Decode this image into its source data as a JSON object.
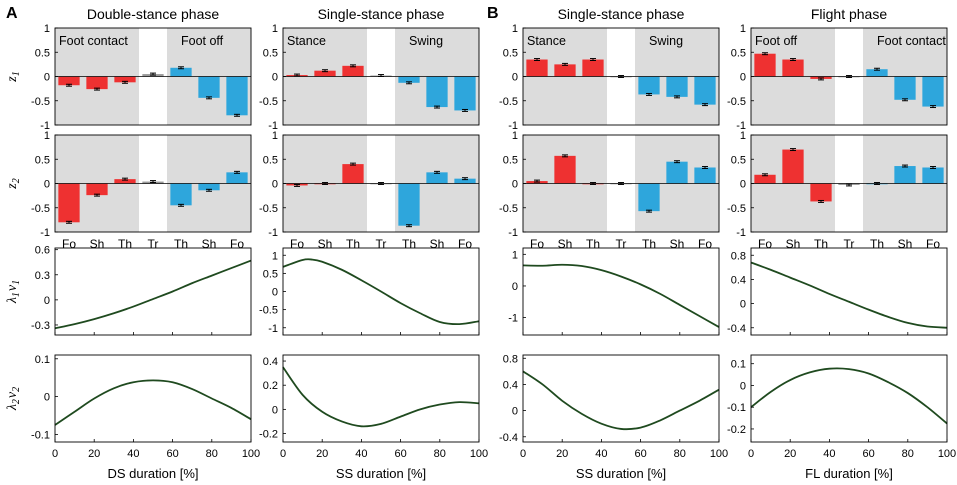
{
  "panel_letters": {
    "A": "A",
    "B": "B"
  },
  "column_titles": [
    "Double-stance phase",
    "Single-stance phase",
    "Single-stance phase",
    "Flight phase"
  ],
  "y_labels": {
    "z1": {
      "main": "z",
      "sub": "1"
    },
    "z2": {
      "main": "z",
      "sub": "2"
    },
    "lv1": {
      "main": "λ",
      "sub1": "1",
      "main2": "ν",
      "sub2": "1"
    },
    "lv2": {
      "main": "λ",
      "sub1": "2",
      "main2": "ν",
      "sub2": "2"
    }
  },
  "x_labels": [
    "DS duration [%]",
    "SS duration [%]",
    "SS duration [%]",
    "FL duration [%]"
  ],
  "colors": {
    "red": "#ee3131",
    "blue": "#2ea6dc",
    "gray": "#9a9a9a",
    "shade": "#dcdcdc",
    "line": "#1f4a1f"
  },
  "chart_data": [
    {
      "type": "bar",
      "row": "z1",
      "column": 0,
      "categories": [
        "Fo",
        "Sh",
        "Th",
        "Tr",
        "Th",
        "Sh",
        "Fo"
      ],
      "values": [
        -0.18,
        -0.26,
        -0.12,
        0.05,
        0.18,
        -0.44,
        -0.8
      ],
      "errors": [
        0.02,
        0.02,
        0.02,
        0.02,
        0.02,
        0.02,
        0.02
      ],
      "groups": [
        "left",
        "left",
        "left",
        "mid",
        "right",
        "right",
        "right"
      ],
      "region_labels": [
        "Foot contact",
        "Foot off"
      ],
      "yticks": [
        1,
        0.5,
        0,
        -0.5,
        -1
      ],
      "ylim": [
        -1,
        1
      ]
    },
    {
      "type": "bar",
      "row": "z1",
      "column": 1,
      "categories": [
        "Fo",
        "Sh",
        "Th",
        "Tr",
        "Th",
        "Sh",
        "Fo"
      ],
      "values": [
        0.03,
        0.12,
        0.22,
        0.02,
        -0.13,
        -0.63,
        -0.7
      ],
      "errors": [
        0.02,
        0.02,
        0.02,
        0.02,
        0.02,
        0.02,
        0.02
      ],
      "groups": [
        "left",
        "left",
        "left",
        "mid",
        "right",
        "right",
        "right"
      ],
      "region_labels": [
        "Stance",
        "Swing"
      ],
      "yticks": [
        1,
        0.5,
        0,
        -0.5,
        -1
      ],
      "ylim": [
        -1,
        1
      ]
    },
    {
      "type": "bar",
      "row": "z1",
      "column": 2,
      "categories": [
        "Fo",
        "Sh",
        "Th",
        "Tr",
        "Th",
        "Sh",
        "Fo"
      ],
      "values": [
        0.35,
        0.25,
        0.35,
        0.0,
        -0.37,
        -0.42,
        -0.58
      ],
      "errors": [
        0.02,
        0.02,
        0.02,
        0.02,
        0.02,
        0.02,
        0.02
      ],
      "groups": [
        "left",
        "left",
        "left",
        "mid",
        "right",
        "right",
        "right"
      ],
      "region_labels": [
        "Stance",
        "Swing"
      ],
      "yticks": [
        1,
        0.5,
        0,
        -0.5,
        -1
      ],
      "ylim": [
        -1,
        1
      ]
    },
    {
      "type": "bar",
      "row": "z1",
      "column": 3,
      "categories": [
        "Fo",
        "Sh",
        "Th",
        "Tr",
        "Th",
        "Sh",
        "Fo"
      ],
      "values": [
        0.47,
        0.35,
        -0.05,
        0.0,
        0.15,
        -0.48,
        -0.62
      ],
      "errors": [
        0.02,
        0.02,
        0.02,
        0.02,
        0.02,
        0.02,
        0.02
      ],
      "groups": [
        "left",
        "left",
        "left",
        "mid",
        "right",
        "right",
        "right"
      ],
      "region_labels": [
        "Foot off",
        "Foot contact"
      ],
      "yticks": [
        1,
        0.5,
        0,
        -0.5,
        -1
      ],
      "ylim": [
        -1,
        1
      ]
    },
    {
      "type": "bar",
      "row": "z2",
      "column": 0,
      "categories": [
        "Fo",
        "Sh",
        "Th",
        "Tr",
        "Th",
        "Sh",
        "Fo"
      ],
      "values": [
        -0.8,
        -0.24,
        0.09,
        0.04,
        -0.45,
        -0.14,
        0.23
      ],
      "errors": [
        0.02,
        0.02,
        0.02,
        0.02,
        0.02,
        0.02,
        0.02
      ],
      "groups": [
        "left",
        "left",
        "left",
        "mid",
        "right",
        "right",
        "right"
      ],
      "yticks": [
        1,
        0.5,
        0,
        -0.5,
        -1
      ],
      "ylim": [
        -1,
        1
      ]
    },
    {
      "type": "bar",
      "row": "z2",
      "column": 1,
      "categories": [
        "Fo",
        "Sh",
        "Th",
        "Tr",
        "Th",
        "Sh",
        "Fo"
      ],
      "values": [
        -0.04,
        0.0,
        0.4,
        0.0,
        -0.87,
        0.23,
        0.1
      ],
      "errors": [
        0.02,
        0.02,
        0.02,
        0.02,
        0.02,
        0.02,
        0.02
      ],
      "groups": [
        "left",
        "left",
        "left",
        "mid",
        "right",
        "right",
        "right"
      ],
      "yticks": [
        1,
        0.5,
        0,
        -0.5,
        -1
      ],
      "ylim": [
        -1,
        1
      ]
    },
    {
      "type": "bar",
      "row": "z2",
      "column": 2,
      "categories": [
        "Fo",
        "Sh",
        "Th",
        "Tr",
        "Th",
        "Sh",
        "Fo"
      ],
      "values": [
        0.05,
        0.57,
        0.0,
        0.0,
        -0.57,
        0.45,
        0.33
      ],
      "errors": [
        0.02,
        0.02,
        0.02,
        0.02,
        0.02,
        0.02,
        0.02
      ],
      "groups": [
        "left",
        "left",
        "left",
        "mid",
        "right",
        "right",
        "right"
      ],
      "yticks": [
        1,
        0.5,
        0,
        -0.5,
        -1
      ],
      "ylim": [
        -1,
        1
      ]
    },
    {
      "type": "bar",
      "row": "z2",
      "column": 3,
      "categories": [
        "Fo",
        "Sh",
        "Th",
        "Tr",
        "Th",
        "Sh",
        "Fo"
      ],
      "values": [
        0.18,
        0.7,
        -0.37,
        -0.03,
        0.0,
        0.36,
        0.33
      ],
      "errors": [
        0.02,
        0.02,
        0.02,
        0.02,
        0.02,
        0.02,
        0.02
      ],
      "groups": [
        "left",
        "left",
        "left",
        "mid",
        "right",
        "right",
        "right"
      ],
      "yticks": [
        1,
        0.5,
        0,
        -0.5,
        -1
      ],
      "ylim": [
        -1,
        1
      ]
    },
    {
      "type": "line",
      "row": "lv1",
      "column": 0,
      "x": [
        0,
        10,
        20,
        30,
        40,
        50,
        60,
        70,
        80,
        90,
        100
      ],
      "y": [
        -0.34,
        -0.29,
        -0.23,
        -0.16,
        -0.08,
        0.01,
        0.1,
        0.2,
        0.29,
        0.38,
        0.47
      ],
      "xlim": [
        0,
        100
      ],
      "ylim": [
        -0.42,
        0.62
      ],
      "yticks": [
        0.6,
        0.3,
        0,
        -0.3
      ]
    },
    {
      "type": "line",
      "row": "lv1",
      "column": 1,
      "x": [
        0,
        10,
        15,
        20,
        30,
        40,
        50,
        60,
        70,
        80,
        90,
        100
      ],
      "y": [
        0.68,
        0.87,
        0.88,
        0.82,
        0.6,
        0.31,
        0.0,
        -0.32,
        -0.6,
        -0.84,
        -0.9,
        -0.82
      ],
      "xlim": [
        0,
        100
      ],
      "ylim": [
        -1.2,
        1.2
      ],
      "yticks": [
        1,
        0.5,
        0,
        -0.5,
        -1
      ]
    },
    {
      "type": "line",
      "row": "lv1",
      "column": 2,
      "x": [
        0,
        10,
        20,
        30,
        40,
        50,
        60,
        70,
        80,
        90,
        100
      ],
      "y": [
        0.65,
        0.64,
        0.67,
        0.63,
        0.5,
        0.3,
        0.05,
        -0.25,
        -0.6,
        -0.95,
        -1.3
      ],
      "xlim": [
        0,
        100
      ],
      "ylim": [
        -1.55,
        1.2
      ],
      "yticks": [
        1,
        0,
        -1
      ]
    },
    {
      "type": "line",
      "row": "lv1",
      "column": 3,
      "x": [
        0,
        10,
        20,
        30,
        40,
        50,
        60,
        70,
        80,
        90,
        100
      ],
      "y": [
        0.68,
        0.56,
        0.43,
        0.3,
        0.16,
        0.03,
        -0.1,
        -0.22,
        -0.32,
        -0.38,
        -0.4
      ],
      "xlim": [
        0,
        100
      ],
      "ylim": [
        -0.52,
        0.92
      ],
      "yticks": [
        0.8,
        0.4,
        0,
        -0.4
      ]
    },
    {
      "type": "line",
      "row": "lv2",
      "column": 0,
      "x": [
        0,
        10,
        20,
        30,
        40,
        50,
        60,
        70,
        80,
        90,
        100
      ],
      "y": [
        -0.075,
        -0.04,
        -0.005,
        0.022,
        0.038,
        0.043,
        0.038,
        0.02,
        -0.005,
        -0.03,
        -0.06
      ],
      "xlim": [
        0,
        100
      ],
      "ylim": [
        -0.12,
        0.11
      ],
      "yticks": [
        0.1,
        0,
        -0.1
      ]
    },
    {
      "type": "line",
      "row": "lv2",
      "column": 1,
      "x": [
        0,
        10,
        20,
        30,
        40,
        50,
        60,
        70,
        80,
        90,
        100
      ],
      "y": [
        0.35,
        0.12,
        -0.02,
        -0.1,
        -0.14,
        -0.12,
        -0.06,
        0.0,
        0.04,
        0.06,
        0.05
      ],
      "xlim": [
        0,
        100
      ],
      "ylim": [
        -0.27,
        0.45
      ],
      "yticks": [
        0.4,
        0.2,
        0,
        -0.2
      ]
    },
    {
      "type": "line",
      "row": "lv2",
      "column": 2,
      "x": [
        0,
        10,
        20,
        30,
        40,
        50,
        60,
        70,
        80,
        90,
        100
      ],
      "y": [
        0.6,
        0.4,
        0.15,
        -0.05,
        -0.2,
        -0.28,
        -0.26,
        -0.15,
        0.0,
        0.15,
        0.32
      ],
      "xlim": [
        0,
        100
      ],
      "ylim": [
        -0.48,
        0.85
      ],
      "yticks": [
        0.8,
        0.4,
        0,
        -0.4
      ]
    },
    {
      "type": "line",
      "row": "lv2",
      "column": 3,
      "x": [
        0,
        10,
        20,
        30,
        40,
        50,
        60,
        70,
        80,
        90,
        100
      ],
      "y": [
        -0.1,
        -0.03,
        0.025,
        0.06,
        0.077,
        0.075,
        0.055,
        0.015,
        -0.035,
        -0.1,
        -0.175
      ],
      "xlim": [
        0,
        100
      ],
      "ylim": [
        -0.26,
        0.14
      ],
      "yticks": [
        0.1,
        0,
        -0.1,
        -0.2
      ]
    }
  ],
  "x_ticks": [
    0,
    20,
    40,
    60,
    80,
    100
  ]
}
